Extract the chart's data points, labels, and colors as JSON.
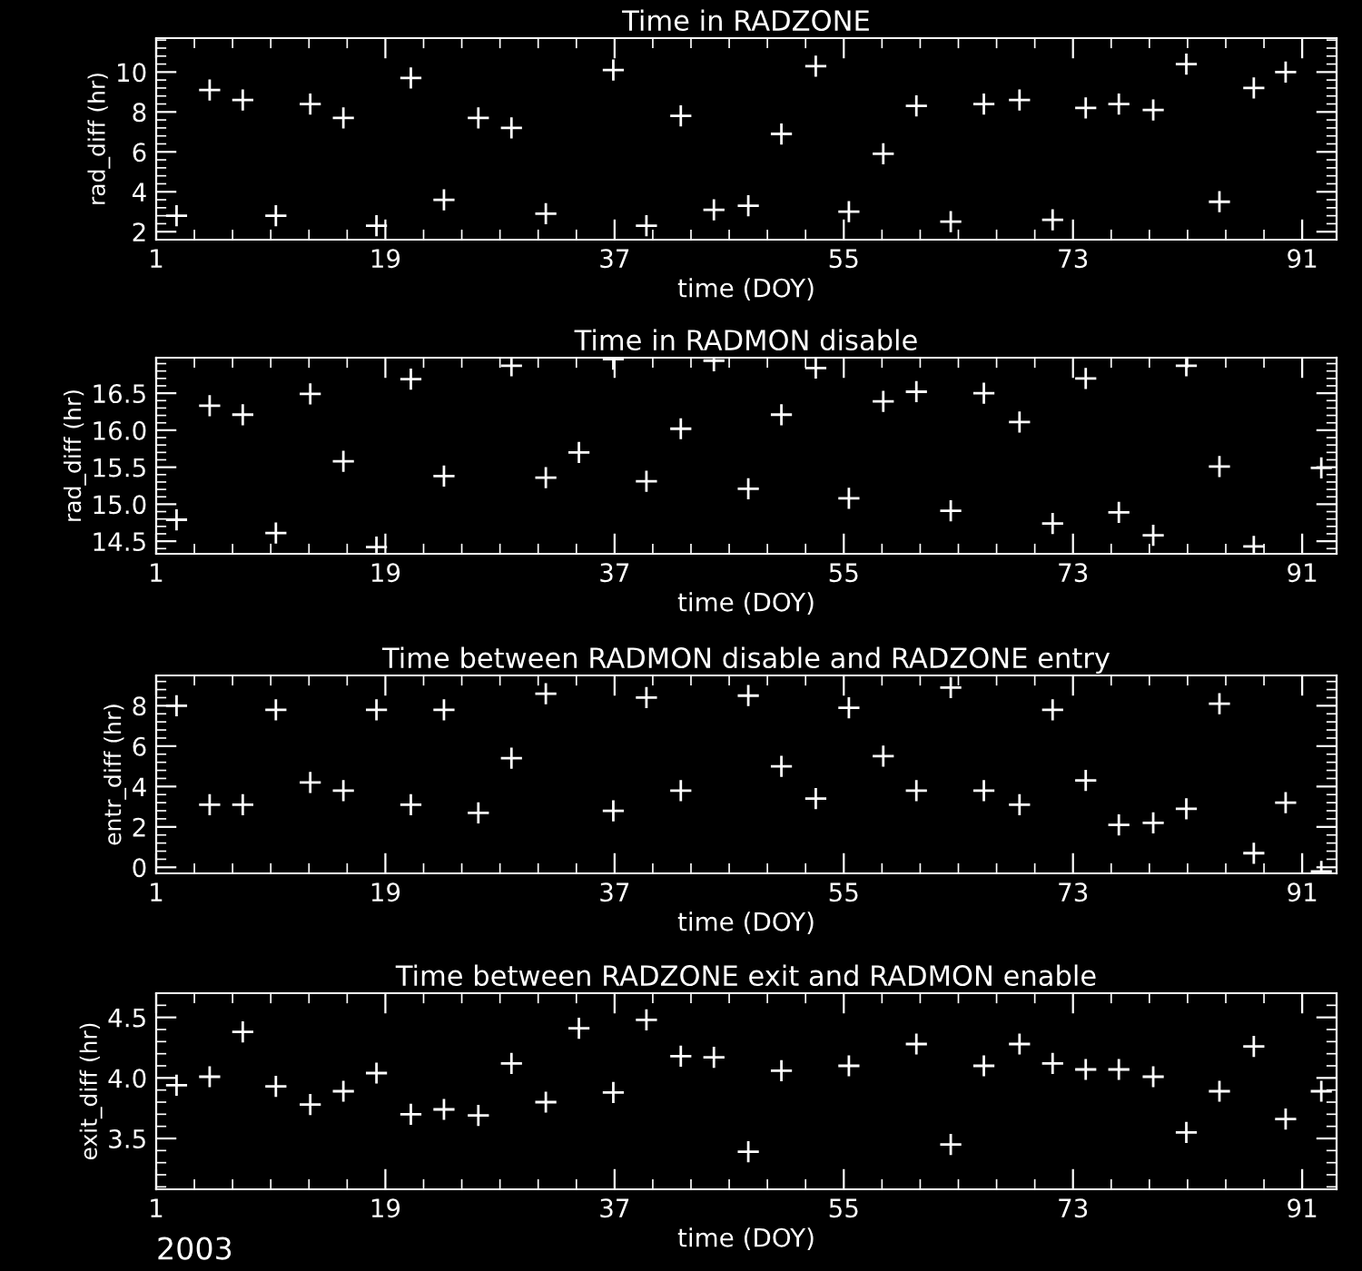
{
  "chart_data": [
    {
      "type": "scatter",
      "title": "Time in RADZONE",
      "xlabel": "time (DOY)",
      "ylabel": "rad_diff (hr)",
      "marker": "cross",
      "grid": false,
      "xlim": [
        1,
        93.7
      ],
      "xticks": [
        1,
        19,
        37,
        55,
        73,
        91
      ],
      "ylim": [
        1.6,
        11.7
      ],
      "yticks": [
        2,
        4,
        6,
        8,
        10
      ],
      "series": [
        {
          "color": "#ffffff",
          "x": [
            2.6,
            5.2,
            7.8,
            10.4,
            13.1,
            15.7,
            18.3,
            21.0,
            23.6,
            26.3,
            28.9,
            31.6,
            36.9,
            39.5,
            42.2,
            44.8,
            47.5,
            50.1,
            52.8,
            55.4,
            58.1,
            60.7,
            63.4,
            66.0,
            68.8,
            71.4,
            74.0,
            76.6,
            79.3,
            81.9,
            84.5,
            87.2,
            89.7
          ],
          "values": [
            2.8,
            9.1,
            8.6,
            2.8,
            8.4,
            7.7,
            2.3,
            9.7,
            3.6,
            7.7,
            7.2,
            2.9,
            10.1,
            2.3,
            7.8,
            3.1,
            3.3,
            6.9,
            10.3,
            3.0,
            5.9,
            8.3,
            2.5,
            8.4,
            8.6,
            2.6,
            8.2,
            8.4,
            8.1,
            10.4,
            3.5,
            9.2,
            10.0
          ]
        }
      ]
    },
    {
      "type": "scatter",
      "title": "Time in RADMON disable",
      "xlabel": "time (DOY)",
      "ylabel": "rad_diff (hr)",
      "marker": "cross",
      "grid": false,
      "xlim": [
        1,
        93.7
      ],
      "xticks": [
        1,
        19,
        37,
        55,
        73,
        91
      ],
      "ylim": [
        14.33,
        16.98
      ],
      "yticks": [
        {
          "value": 14.5,
          "label": "14.5"
        },
        {
          "value": 15.0,
          "label": "15.0"
        },
        {
          "value": 15.5,
          "label": "15.5"
        },
        {
          "value": 16.0,
          "label": "16.0"
        },
        {
          "value": 16.5,
          "label": "16.5"
        }
      ],
      "series": [
        {
          "color": "#ffffff",
          "x": [
            2.6,
            5.2,
            7.8,
            10.4,
            13.1,
            15.7,
            18.3,
            21.0,
            23.6,
            28.9,
            31.6,
            34.2,
            36.9,
            39.5,
            42.2,
            44.8,
            47.5,
            50.1,
            52.8,
            55.4,
            58.1,
            60.7,
            63.4,
            66.0,
            68.8,
            71.4,
            74.0,
            76.6,
            79.3,
            81.9,
            84.5,
            87.2,
            92.5
          ],
          "values": [
            14.79,
            16.33,
            16.21,
            14.61,
            16.49,
            15.58,
            14.42,
            16.69,
            15.38,
            16.87,
            15.36,
            15.7,
            16.96,
            15.31,
            16.02,
            16.94,
            15.21,
            16.21,
            16.84,
            15.08,
            16.39,
            16.52,
            14.91,
            16.5,
            16.11,
            14.74,
            16.7,
            14.89,
            14.58,
            16.87,
            15.51,
            14.43,
            15.49
          ]
        }
      ]
    },
    {
      "type": "scatter",
      "title": "Time between RADMON disable and RADZONE entry",
      "xlabel": "time (DOY)",
      "ylabel": "entr_diff (hr)",
      "marker": "cross",
      "grid": false,
      "xlim": [
        1,
        93.7
      ],
      "xticks": [
        1,
        19,
        37,
        55,
        73,
        91
      ],
      "ylim": [
        -0.3,
        9.5
      ],
      "yticks": [
        0,
        2,
        4,
        6,
        8
      ],
      "series": [
        {
          "color": "#ffffff",
          "x": [
            2.6,
            5.2,
            7.8,
            10.4,
            13.1,
            15.7,
            18.3,
            21.0,
            23.6,
            26.3,
            28.9,
            31.6,
            36.9,
            39.5,
            42.2,
            47.5,
            50.1,
            52.8,
            55.4,
            58.1,
            60.7,
            63.4,
            66.0,
            68.8,
            71.4,
            74.0,
            76.6,
            79.3,
            81.9,
            84.5,
            87.2,
            89.7,
            92.5
          ],
          "values": [
            8.0,
            3.1,
            3.1,
            7.8,
            4.2,
            3.8,
            7.8,
            3.1,
            7.8,
            2.7,
            5.4,
            8.6,
            2.8,
            8.4,
            3.8,
            8.5,
            5.0,
            3.4,
            7.9,
            5.5,
            3.8,
            8.9,
            3.8,
            3.1,
            7.8,
            4.3,
            2.1,
            2.2,
            2.9,
            8.1,
            0.7,
            3.2,
            -0.2
          ]
        }
      ]
    },
    {
      "type": "scatter",
      "title": "Time between RADZONE exit and RADMON enable",
      "xlabel": "time (DOY)",
      "ylabel": "exit_diff (hr)",
      "marker": "cross",
      "grid": false,
      "xlim": [
        1,
        93.7
      ],
      "xticks": [
        1,
        19,
        37,
        55,
        73,
        91
      ],
      "ylim": [
        3.08,
        4.7
      ],
      "yticks": [
        {
          "value": 3.5,
          "label": "3.5"
        },
        {
          "value": 4.0,
          "label": "4.0"
        },
        {
          "value": 4.5,
          "label": "4.5"
        }
      ],
      "annotations": [
        "2003"
      ],
      "series": [
        {
          "color": "#ffffff",
          "x": [
            2.6,
            5.2,
            7.8,
            10.4,
            13.1,
            15.7,
            18.3,
            21.0,
            23.6,
            26.3,
            28.9,
            31.6,
            34.2,
            36.9,
            39.5,
            42.2,
            44.8,
            47.5,
            50.1,
            55.4,
            60.7,
            63.4,
            66.0,
            68.8,
            71.4,
            74.0,
            76.6,
            79.3,
            81.9,
            84.5,
            87.2,
            89.7,
            92.5
          ],
          "values": [
            3.94,
            4.01,
            4.38,
            3.93,
            3.78,
            3.89,
            4.04,
            3.7,
            3.74,
            3.69,
            4.12,
            3.8,
            4.41,
            3.88,
            4.48,
            4.18,
            4.17,
            3.39,
            4.06,
            4.1,
            4.28,
            3.45,
            4.1,
            4.28,
            4.12,
            4.07,
            4.07,
            4.01,
            3.55,
            3.89,
            4.26,
            3.66,
            3.89
          ]
        }
      ]
    }
  ]
}
